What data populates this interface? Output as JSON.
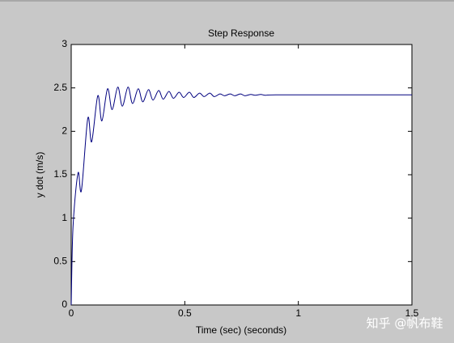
{
  "chart_data": {
    "type": "line",
    "title": "Step Response",
    "x_label": "Time (sec) (seconds)",
    "y_label": "y dot (m/s)",
    "x": [
      0,
      0.008,
      0.03,
      0.045,
      0.073,
      0.09,
      0.117,
      0.135,
      0.16,
      0.18,
      0.205,
      0.225,
      0.25,
      0.27,
      0.295,
      0.315,
      0.34,
      0.36,
      0.385,
      0.405,
      0.43,
      0.45,
      0.475,
      0.495,
      0.52,
      0.54,
      0.565,
      0.585,
      0.61,
      0.63,
      0.655,
      0.675,
      0.7,
      0.72,
      0.745,
      0.765,
      0.79,
      0.81,
      0.835,
      0.855,
      0.9,
      1.2,
      1.5
    ],
    "series": [
      {
        "color": "#00007f",
        "values": [
          0,
          0.9,
          1.52,
          1.32,
          2.15,
          1.88,
          2.41,
          2.12,
          2.49,
          2.25,
          2.51,
          2.29,
          2.51,
          2.32,
          2.49,
          2.34,
          2.48,
          2.36,
          2.47,
          2.37,
          2.46,
          2.38,
          2.45,
          2.39,
          2.45,
          2.39,
          2.44,
          2.4,
          2.44,
          2.4,
          2.43,
          2.41,
          2.43,
          2.41,
          2.43,
          2.41,
          2.425,
          2.415,
          2.425,
          2.415,
          2.42,
          2.42,
          2.42
        ]
      }
    ],
    "xlim": [
      0,
      1.5
    ],
    "xticks": [
      0,
      0.5,
      1,
      1.5
    ],
    "ylim": [
      0,
      3
    ],
    "yticks": [
      0,
      0.5,
      1,
      1.5,
      2,
      2.5,
      3
    ],
    "grid": false
  },
  "watermark": "知乎 @帆布鞋"
}
